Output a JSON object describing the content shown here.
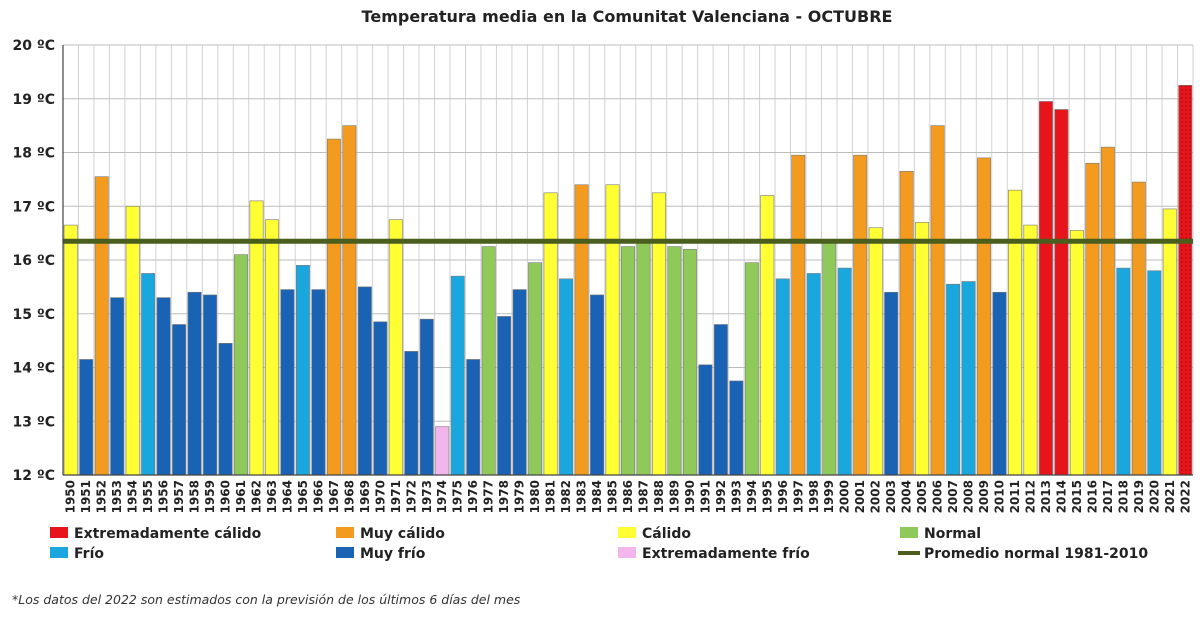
{
  "chart_data": {
    "type": "bar",
    "title": "Temperatura media en la Comunitat Valenciana - OCTUBRE",
    "ylim": [
      12,
      20
    ],
    "yticks": [
      12,
      13,
      14,
      15,
      16,
      17,
      18,
      19,
      20
    ],
    "ytick_suffix": " ºC",
    "grid": true,
    "categories": [
      "1950",
      "1951",
      "1952",
      "1953",
      "1954",
      "1955",
      "1956",
      "1957",
      "1958",
      "1959",
      "1960",
      "1961",
      "1962",
      "1963",
      "1964",
      "1965",
      "1966",
      "1967",
      "1968",
      "1969",
      "1970",
      "1971",
      "1972",
      "1973",
      "1974",
      "1975",
      "1976",
      "1977",
      "1978",
      "1979",
      "1980",
      "1981",
      "1982",
      "1983",
      "1984",
      "1985",
      "1986",
      "1987",
      "1988",
      "1989",
      "1990",
      "1991",
      "1992",
      "1993",
      "1994",
      "1995",
      "1996",
      "1997",
      "1998",
      "1999",
      "2000",
      "2001",
      "2002",
      "2003",
      "2004",
      "2005",
      "2006",
      "2007",
      "2008",
      "2009",
      "2010",
      "2011",
      "2012",
      "2013",
      "2014",
      "2015",
      "2016",
      "2017",
      "2018",
      "2019",
      "2020",
      "2021",
      "2022"
    ],
    "values": [
      16.65,
      14.15,
      17.55,
      15.3,
      17.0,
      15.75,
      15.3,
      14.8,
      15.4,
      15.35,
      14.45,
      16.1,
      17.1,
      16.75,
      15.45,
      15.9,
      15.45,
      18.25,
      18.5,
      15.5,
      14.85,
      16.75,
      14.3,
      14.9,
      12.9,
      15.7,
      14.15,
      16.25,
      14.95,
      15.45,
      15.95,
      17.25,
      15.65,
      17.4,
      15.35,
      17.4,
      16.25,
      16.35,
      17.25,
      16.25,
      16.2,
      14.05,
      14.8,
      13.75,
      15.95,
      17.2,
      15.65,
      17.95,
      15.75,
      16.35,
      15.85,
      17.95,
      16.6,
      15.4,
      17.65,
      16.7,
      18.5,
      15.55,
      15.6,
      17.9,
      15.4,
      17.3,
      16.65,
      18.95,
      18.8,
      16.55,
      17.8,
      18.1,
      15.85,
      17.45,
      15.8,
      16.95,
      19.25
    ],
    "classes": [
      "calido",
      "muy_frio",
      "muy_calido",
      "muy_frio",
      "calido",
      "frio",
      "muy_frio",
      "muy_frio",
      "muy_frio",
      "muy_frio",
      "muy_frio",
      "normal",
      "calido",
      "calido",
      "muy_frio",
      "frio",
      "muy_frio",
      "muy_calido",
      "muy_calido",
      "muy_frio",
      "muy_frio",
      "calido",
      "muy_frio",
      "muy_frio",
      "ext_frio",
      "frio",
      "muy_frio",
      "normal",
      "muy_frio",
      "muy_frio",
      "normal",
      "calido",
      "frio",
      "muy_calido",
      "muy_frio",
      "calido",
      "normal",
      "normal",
      "calido",
      "normal",
      "normal",
      "muy_frio",
      "muy_frio",
      "muy_frio",
      "normal",
      "calido",
      "frio",
      "muy_calido",
      "frio",
      "normal",
      "frio",
      "muy_calido",
      "calido",
      "muy_frio",
      "muy_calido",
      "calido",
      "muy_calido",
      "frio",
      "frio",
      "muy_calido",
      "muy_frio",
      "calido",
      "calido",
      "ext_calido",
      "ext_calido",
      "calido",
      "muy_calido",
      "muy_calido",
      "frio",
      "muy_calido",
      "frio",
      "calido",
      "ext_calido_est"
    ],
    "class_colors": {
      "ext_calido": "#e8141b",
      "ext_calido_est": "#e8141b",
      "muy_calido": "#f39b1e",
      "calido": "#ffff33",
      "normal": "#8fc95a",
      "frio": "#1aa7de",
      "muy_frio": "#1a62b3",
      "ext_frio": "#f2b6ec"
    },
    "reference_line": {
      "name": "Promedio normal 1981-2010",
      "value": 16.35,
      "color": "#4a5e1e"
    },
    "legend": [
      {
        "label": "Extremadamente cálido",
        "color": "#e8141b",
        "kind": "box"
      },
      {
        "label": "Muy cálido",
        "color": "#f39b1e",
        "kind": "box"
      },
      {
        "label": "Cálido",
        "color": "#ffff33",
        "kind": "box"
      },
      {
        "label": "Normal",
        "color": "#8fc95a",
        "kind": "box"
      },
      {
        "label": "Frío",
        "color": "#1aa7de",
        "kind": "box"
      },
      {
        "label": "Muy frío",
        "color": "#1a62b3",
        "kind": "box"
      },
      {
        "label": "Extremadamente frío",
        "color": "#f2b6ec",
        "kind": "box"
      },
      {
        "label": "Promedio normal 1981-2010",
        "color": "#4a5e1e",
        "kind": "line"
      }
    ],
    "legend_placement": "bottom",
    "footnote": "*Los datos del 2022 son estimados con la previsión de los últimos 6 días del mes"
  }
}
